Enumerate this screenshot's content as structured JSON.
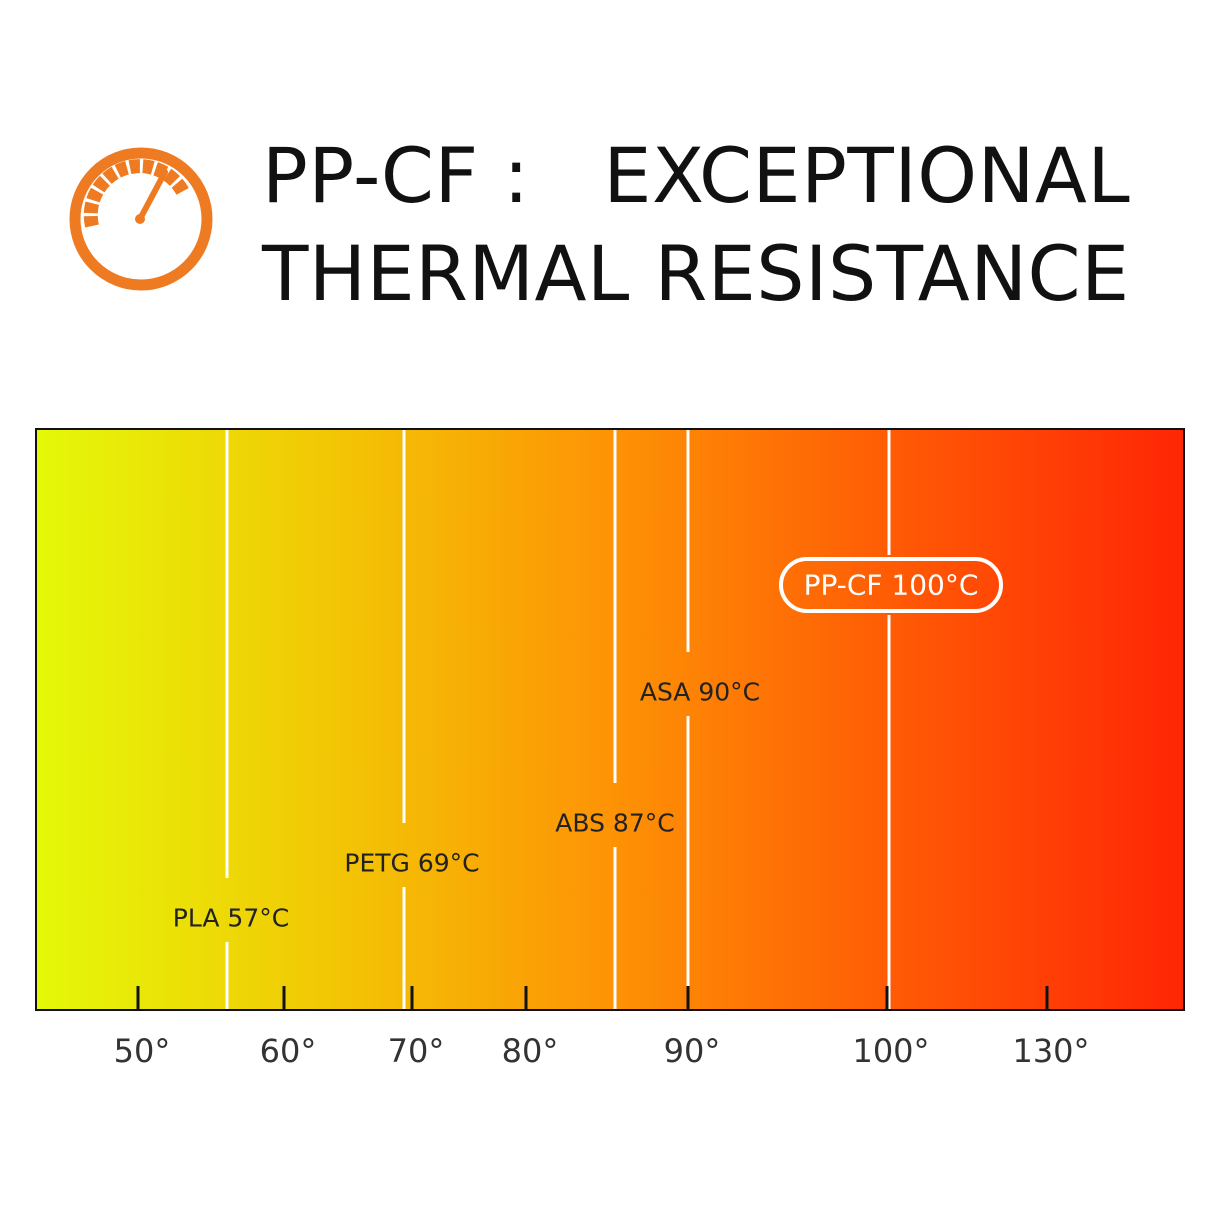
{
  "header": {
    "icon": "thermometer-gauge-icon",
    "title_line_1": "PP-CF :   EXCEPTIONAL",
    "title_line_2": "THERMAL RESISTANCE"
  },
  "chart_data": {
    "type": "bar",
    "title": "PP-CF :   EXCEPTIONAL THERMAL RESISTANCE",
    "x_ticks": [
      {
        "value": 50,
        "label": "50°"
      },
      {
        "value": 60,
        "label": "60°"
      },
      {
        "value": 70,
        "label": "70°"
      },
      {
        "value": 80,
        "label": "80°"
      },
      {
        "value": 90,
        "label": "90°"
      },
      {
        "value": 100,
        "label": "100°"
      },
      {
        "value": 130,
        "label": "130°"
      }
    ],
    "materials": [
      {
        "name": "PLA",
        "value": 57,
        "label": "PLA 57°C",
        "highlight": false
      },
      {
        "name": "PETG",
        "value": 69,
        "label": "PETG 69°C",
        "highlight": false
      },
      {
        "name": "ABS",
        "value": 87,
        "label": "ABS 87°C",
        "highlight": false
      },
      {
        "name": "ASA",
        "value": 90,
        "label": "ASA 90°C",
        "highlight": false
      },
      {
        "name": "PP-CF",
        "value": 100,
        "label": "PP-CF 100°C",
        "highlight": true
      }
    ],
    "gradient_colors": [
      "#e4f908",
      "#f2c805",
      "#fd9305",
      "#ff5a05",
      "#ff2605"
    ],
    "highlight_border_color": "#ffffff"
  }
}
